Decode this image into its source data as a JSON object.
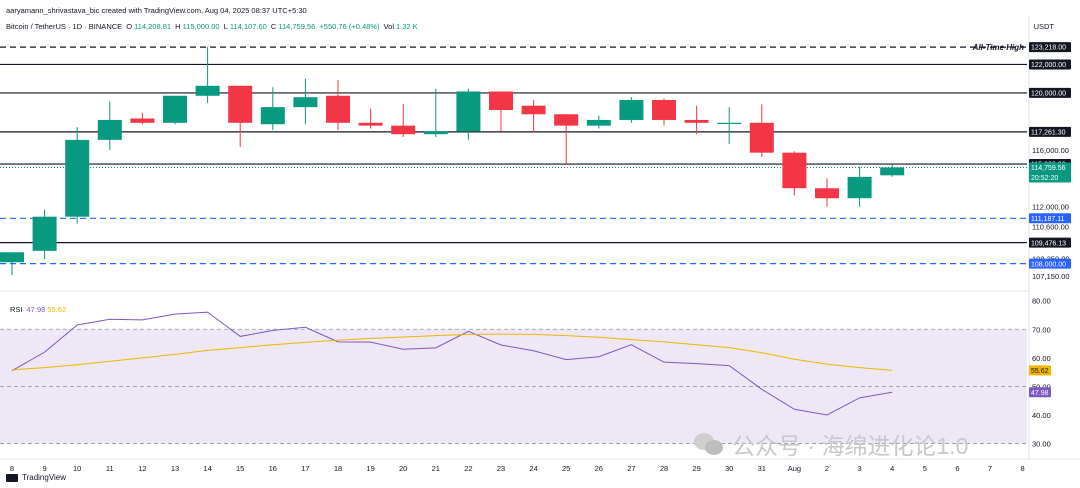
{
  "header": {
    "attribution": "aaryamann_shrivastava_bic created with TradingView.com, Aug 04, 2025 08:37 UTC+5:30",
    "symbol": "Bitcoin / TetherUS · 1D · BINANCE",
    "open_label": "O",
    "open": "114,208.81",
    "high_label": "H",
    "high": "115,000.00",
    "low_label": "L",
    "low": "114,107.60",
    "close_label": "C",
    "close": "114,759.56",
    "change": "+550.76 (+0.48%)",
    "volume_label": "Vol",
    "volume": "1.32 K"
  },
  "currency": "USDT",
  "rsi_header": {
    "label": "RSI",
    "value": "47.98",
    "ma_value": "55.62"
  },
  "brand": "TradingView",
  "watermark": "公众号 · 海绵进化论1.0",
  "colors": {
    "up": "#089981",
    "down": "#f23645",
    "rsi": "#7e57c2",
    "rsi_ma": "#f2b500",
    "blue": "#2962ff",
    "rsi_band": "#ede7f6"
  },
  "chart_data": [
    {
      "type": "candlestick",
      "x_labels": [
        "8",
        "9",
        "10",
        "11",
        "12",
        "13",
        "14",
        "15",
        "16",
        "17",
        "18",
        "19",
        "20",
        "21",
        "22",
        "23",
        "24",
        "25",
        "26",
        "27",
        "28",
        "29",
        "30",
        "31",
        "Aug",
        "2",
        "3",
        "4",
        "5",
        "6",
        "7",
        "8"
      ],
      "ylim": [
        106500,
        124000
      ],
      "price_ticks": [
        107150,
        108350,
        110600,
        112000,
        116000
      ],
      "candles": [
        {
          "o": 108100,
          "h": 108800,
          "l": 107200,
          "c": 108800
        },
        {
          "o": 108900,
          "h": 111800,
          "l": 108300,
          "c": 111300
        },
        {
          "o": 111300,
          "h": 117600,
          "l": 110800,
          "c": 116700
        },
        {
          "o": 116700,
          "h": 119400,
          "l": 116000,
          "c": 118100
        },
        {
          "o": 118200,
          "h": 118600,
          "l": 117800,
          "c": 117900
        },
        {
          "o": 117900,
          "h": 119800,
          "l": 117800,
          "c": 119800
        },
        {
          "o": 119800,
          "h": 123218,
          "l": 119300,
          "c": 120500
        },
        {
          "o": 120500,
          "h": 120500,
          "l": 116200,
          "c": 117900
        },
        {
          "o": 117800,
          "h": 120400,
          "l": 117400,
          "c": 119000
        },
        {
          "o": 119000,
          "h": 121000,
          "l": 117800,
          "c": 119700
        },
        {
          "o": 119800,
          "h": 120900,
          "l": 117400,
          "c": 117900
        },
        {
          "o": 117900,
          "h": 118900,
          "l": 117500,
          "c": 117700
        },
        {
          "o": 117700,
          "h": 119200,
          "l": 116900,
          "c": 117100
        },
        {
          "o": 117100,
          "h": 120300,
          "l": 116900,
          "c": 117300
        },
        {
          "o": 117300,
          "h": 120300,
          "l": 116700,
          "c": 120100
        },
        {
          "o": 120100,
          "h": 120100,
          "l": 117300,
          "c": 118800
        },
        {
          "o": 119100,
          "h": 119500,
          "l": 117200,
          "c": 118500
        },
        {
          "o": 118500,
          "h": 118500,
          "l": 115000,
          "c": 117700
        },
        {
          "o": 117700,
          "h": 118400,
          "l": 117500,
          "c": 118100
        },
        {
          "o": 118100,
          "h": 119700,
          "l": 117900,
          "c": 119500
        },
        {
          "o": 119500,
          "h": 119600,
          "l": 117700,
          "c": 118100
        },
        {
          "o": 118100,
          "h": 119100,
          "l": 117100,
          "c": 117900
        },
        {
          "o": 117900,
          "h": 119000,
          "l": 116400,
          "c": 117900
        },
        {
          "o": 117900,
          "h": 119200,
          "l": 115500,
          "c": 115800
        },
        {
          "o": 115800,
          "h": 115900,
          "l": 112800,
          "c": 113300
        },
        {
          "o": 113300,
          "h": 114000,
          "l": 112000,
          "c": 112600
        },
        {
          "o": 112600,
          "h": 114800,
          "l": 112000,
          "c": 114100
        },
        {
          "o": 114208.81,
          "h": 115000,
          "l": 114107.6,
          "c": 114759.56
        }
      ],
      "levels": [
        {
          "value": 123218,
          "label": "123,218.00",
          "style": "dashed",
          "color": "#131722",
          "annotation": "All-Time High"
        },
        {
          "value": 122000,
          "label": "122,000.00",
          "style": "solid",
          "color": "#131722"
        },
        {
          "value": 120000,
          "label": "120,000.00",
          "style": "solid",
          "color": "#131722"
        },
        {
          "value": 117261.3,
          "label": "117,261.30",
          "style": "solid",
          "color": "#131722"
        },
        {
          "value": 115000,
          "label": "115,000.00",
          "style": "solid",
          "color": "#131722"
        },
        {
          "value": 114759.56,
          "label": "114,759.56",
          "style": "dotted",
          "color": "#089981",
          "countdown": "20:52:20"
        },
        {
          "value": 111187.11,
          "label": "111,187.11",
          "style": "dashed",
          "color": "#2962ff"
        },
        {
          "value": 109476.13,
          "label": "109,476.13",
          "style": "solid",
          "color": "#131722"
        },
        {
          "value": 108000,
          "label": "108,000.00",
          "style": "dashed",
          "color": "#2962ff"
        }
      ]
    },
    {
      "type": "line",
      "title": "RSI",
      "ylim": [
        26,
        82
      ],
      "y_ticks": [
        30,
        40,
        50,
        60,
        70,
        80
      ],
      "bands": [
        30,
        50,
        70
      ],
      "series": [
        {
          "name": "RSI",
          "values": [
            55.5,
            62,
            71.5,
            73.5,
            73.3,
            75.3,
            76,
            67.5,
            69.6,
            70.7,
            65.6,
            65.5,
            63,
            63.5,
            69.3,
            64.5,
            62.5,
            59.4,
            60.4,
            64.6,
            58.5,
            58,
            57.3,
            49,
            42,
            40,
            46,
            47.98
          ]
        },
        {
          "values": [
            55.8,
            56.6,
            57.6,
            58.8,
            60,
            61.2,
            62.6,
            63.6,
            64.6,
            65.4,
            66.2,
            66.8,
            67.3,
            67.8,
            68.2,
            68.3,
            68.2,
            67.8,
            67.2,
            66.4,
            65.6,
            64.6,
            63.6,
            61.8,
            59.5,
            57.8,
            56.6,
            55.62
          ]
        }
      ],
      "value_labels": [
        "55.62",
        "47.98"
      ]
    }
  ]
}
